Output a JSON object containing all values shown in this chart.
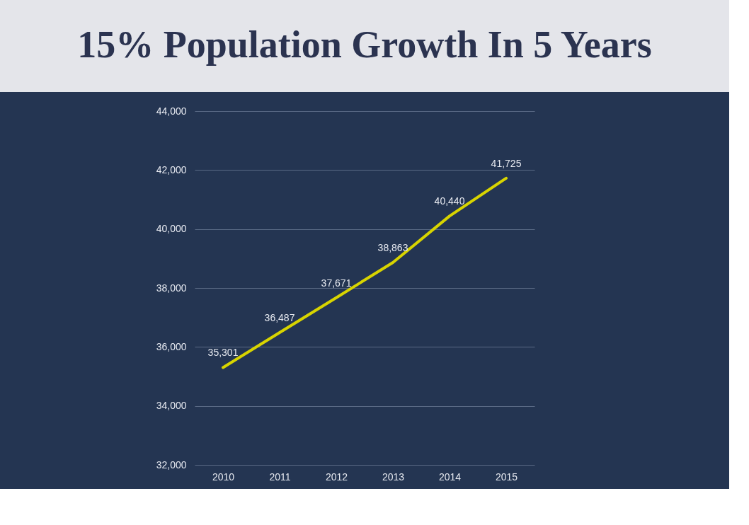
{
  "chart_data": {
    "type": "line",
    "title": "15% Population Growth In 5 Years",
    "categories": [
      "2010",
      "2011",
      "2012",
      "2013",
      "2014",
      "2015"
    ],
    "series": [
      {
        "color": "#d8d400",
        "values": [
          35301,
          36487,
          37671,
          38863,
          40440,
          41725
        ],
        "value_labels": [
          "35,301",
          "36,487",
          "37,671",
          "38,863",
          "40,440",
          "41,725"
        ]
      }
    ],
    "ylim": [
      32000,
      44000
    ],
    "yticks": [
      {
        "value": 32000,
        "label": "32,000"
      },
      {
        "value": 34000,
        "label": "34,000"
      },
      {
        "value": 36000,
        "label": "36,000"
      },
      {
        "value": 38000,
        "label": "38,000"
      },
      {
        "value": 40000,
        "label": "40,000"
      },
      {
        "value": 42000,
        "label": "42,000"
      },
      {
        "value": 44000,
        "label": "44,000"
      }
    ],
    "grid": "y",
    "marker": "none",
    "line_style": "solid",
    "legend": false
  }
}
